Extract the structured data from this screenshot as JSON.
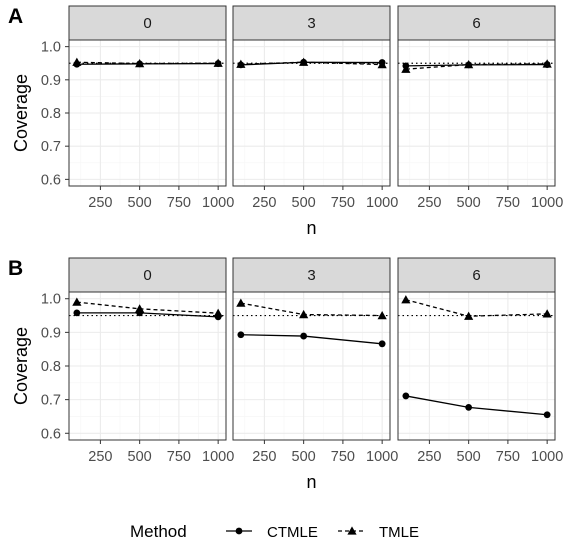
{
  "legend": {
    "title": "Method",
    "items": [
      {
        "name": "CTMLE",
        "linetype": "solid",
        "marker": "circle"
      },
      {
        "name": "TMLE",
        "linetype": "dashed",
        "marker": "triangle"
      }
    ]
  },
  "reference_line": 0.95,
  "colors": {
    "line": "#000000",
    "strip_bg": "#d9d9d9",
    "grid_major": "#ebebeb",
    "grid_minor": "#f5f5f5",
    "border": "#333333"
  },
  "chart_data": [
    {
      "type": "line",
      "panel_tag": "A",
      "xlabel": "n",
      "ylabel": "Coverage",
      "ylim": [
        0.58,
        1.02
      ],
      "xlim": [
        50,
        1050
      ],
      "yticks": [
        0.6,
        0.7,
        0.8,
        0.9,
        1.0
      ],
      "ytick_labels": [
        "0.6",
        "0.7",
        "0.8",
        "0.9",
        "1.0"
      ],
      "xticks": [
        250,
        500,
        750,
        1000
      ],
      "xtick_labels": [
        "250",
        "500",
        "750",
        "1000"
      ],
      "grid": true,
      "facets": [
        {
          "label": "0",
          "x": [
            100,
            500,
            1000
          ],
          "series": [
            {
              "name": "CTMLE",
              "values": [
                0.947,
                0.948,
                0.949
              ]
            },
            {
              "name": "TMLE",
              "values": [
                0.953,
                0.949,
                0.95
              ]
            }
          ]
        },
        {
          "label": "3",
          "x": [
            100,
            500,
            1000
          ],
          "series": [
            {
              "name": "CTMLE",
              "values": [
                0.945,
                0.953,
                0.952
              ]
            },
            {
              "name": "TMLE",
              "values": [
                0.947,
                0.953,
                0.946
              ]
            }
          ]
        },
        {
          "label": "6",
          "x": [
            100,
            500,
            1000
          ],
          "series": [
            {
              "name": "CTMLE",
              "values": [
                0.942,
                0.945,
                0.946
              ]
            },
            {
              "name": "TMLE",
              "values": [
                0.932,
                0.946,
                0.948
              ]
            }
          ]
        }
      ]
    },
    {
      "type": "line",
      "panel_tag": "B",
      "xlabel": "n",
      "ylabel": "Coverage",
      "ylim": [
        0.58,
        1.02
      ],
      "xlim": [
        50,
        1050
      ],
      "yticks": [
        0.6,
        0.7,
        0.8,
        0.9,
        1.0
      ],
      "ytick_labels": [
        "0.6",
        "0.7",
        "0.8",
        "0.9",
        "1.0"
      ],
      "xticks": [
        250,
        500,
        750,
        1000
      ],
      "xtick_labels": [
        "250",
        "500",
        "750",
        "1000"
      ],
      "grid": true,
      "facets": [
        {
          "label": "0",
          "x": [
            100,
            500,
            1000
          ],
          "series": [
            {
              "name": "CTMLE",
              "values": [
                0.958,
                0.958,
                0.946
              ]
            },
            {
              "name": "TMLE",
              "values": [
                0.99,
                0.97,
                0.957
              ]
            }
          ]
        },
        {
          "label": "3",
          "x": [
            100,
            500,
            1000
          ],
          "series": [
            {
              "name": "CTMLE",
              "values": [
                0.893,
                0.889,
                0.866
              ]
            },
            {
              "name": "TMLE",
              "values": [
                0.987,
                0.953,
                0.95
              ]
            }
          ]
        },
        {
          "label": "6",
          "x": [
            100,
            500,
            1000
          ],
          "series": [
            {
              "name": "CTMLE",
              "values": [
                0.711,
                0.677,
                0.655
              ]
            },
            {
              "name": "TMLE",
              "values": [
                0.997,
                0.948,
                0.955
              ]
            }
          ]
        }
      ]
    }
  ]
}
